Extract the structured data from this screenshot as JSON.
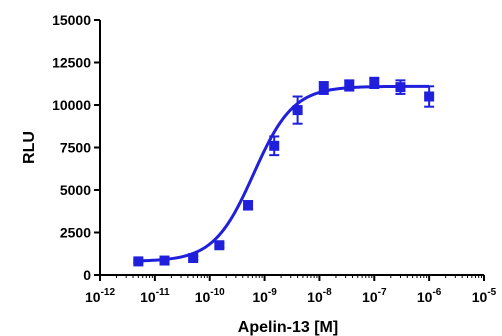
{
  "chart_data": {
    "type": "scatter",
    "title": "",
    "xlabel": "Apelin-13 [M]",
    "ylabel": "RLU",
    "x_scale": "log",
    "xlim": [
      1e-12,
      1e-05
    ],
    "ylim": [
      0,
      15000
    ],
    "y_ticks": [
      0,
      2500,
      5000,
      7500,
      10000,
      12500,
      15000
    ],
    "y_tick_labels": [
      "0",
      "2500",
      "5000",
      "7500",
      "10000",
      "12500",
      "15000"
    ],
    "x_ticks": [
      {
        "base": "10",
        "exp": "-12"
      },
      {
        "base": "10",
        "exp": "-11"
      },
      {
        "base": "10",
        "exp": "-10"
      },
      {
        "base": "10",
        "exp": "-9"
      },
      {
        "base": "10",
        "exp": "-8"
      },
      {
        "base": "10",
        "exp": "-7"
      },
      {
        "base": "10",
        "exp": "-6"
      },
      {
        "base": "10",
        "exp": "-5"
      }
    ],
    "grid": false,
    "legend": "none",
    "series": [
      {
        "marker": "square",
        "color": "#1f1fdc",
        "points": [
          {
            "x": 5e-12,
            "y": 800,
            "err": 80
          },
          {
            "x": 1.5e-11,
            "y": 850,
            "err": 80
          },
          {
            "x": 5e-11,
            "y": 1000,
            "err": 100
          },
          {
            "x": 1.5e-10,
            "y": 1750,
            "err": 120
          },
          {
            "x": 5e-10,
            "y": 4100,
            "err": 250
          },
          {
            "x": 1.5e-09,
            "y": 7600,
            "err": 550
          },
          {
            "x": 4e-09,
            "y": 9700,
            "err": 800
          },
          {
            "x": 1.2e-08,
            "y": 11000,
            "err": 350
          },
          {
            "x": 3.5e-08,
            "y": 11150,
            "err": 300
          },
          {
            "x": 1e-07,
            "y": 11300,
            "err": 300
          },
          {
            "x": 3e-07,
            "y": 11050,
            "err": 400
          },
          {
            "x": 1e-06,
            "y": 10500,
            "err": 600
          }
        ]
      }
    ],
    "fit_curve": {
      "model": "four-parameter logistic",
      "bottom": 800,
      "top": 11100,
      "log_ec50": -9.2,
      "hill": 1.2,
      "color": "#1f1fdc"
    }
  }
}
